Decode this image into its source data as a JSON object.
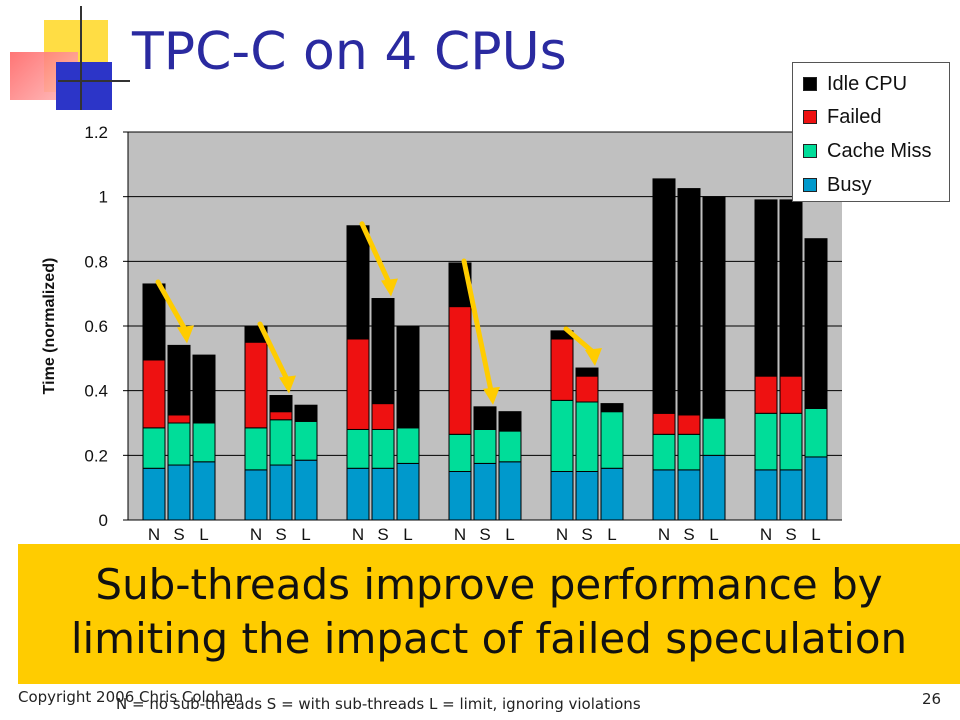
{
  "slide": {
    "title": "TPC-C on 4 CPUs",
    "banner": "Sub-threads improve performance by limiting the impact of failed speculation",
    "footer_left": "Copyright 2006 Chris Colohan",
    "footer_note": "N = no sub-threads     S = with sub-threads     L = limit, ignoring violations",
    "page_number": "26"
  },
  "colors": {
    "busy": "#0099cc",
    "cache_miss": "#00dd99",
    "failed": "#ee1111",
    "idle": "#000000",
    "plot_bg": "#c0c0c0",
    "arrow": "#ffcc00",
    "title": "#2a2aa0",
    "banner": "#ffcc00"
  },
  "chart_data": {
    "type": "bar",
    "stacked": true,
    "ylabel": "Time (normalized)",
    "ylim": [
      0,
      1.2
    ],
    "yticks": [
      "0",
      "0.2",
      "0.4",
      "0.6",
      "0.8",
      "1",
      "1.2"
    ],
    "grid": true,
    "legend_position": "top-right",
    "group_labels": [
      "N",
      "S",
      "L"
    ],
    "stack_order": [
      "Busy",
      "Cache Miss",
      "Failed",
      "Idle CPU"
    ],
    "legend": [
      "Idle CPU",
      "Failed",
      "Cache Miss",
      "Busy"
    ],
    "groups": [
      {
        "bars": [
          {
            "label": "N",
            "busy": 0.16,
            "cache_miss": 0.125,
            "failed": 0.21,
            "idle": 0.235
          },
          {
            "label": "S",
            "busy": 0.17,
            "cache_miss": 0.13,
            "failed": 0.025,
            "idle": 0.215
          },
          {
            "label": "L",
            "busy": 0.18,
            "cache_miss": 0.12,
            "failed": 0.0,
            "idle": 0.21
          }
        ],
        "arrow": true
      },
      {
        "bars": [
          {
            "label": "N",
            "busy": 0.155,
            "cache_miss": 0.13,
            "failed": 0.265,
            "idle": 0.05
          },
          {
            "label": "S",
            "busy": 0.17,
            "cache_miss": 0.14,
            "failed": 0.025,
            "idle": 0.05
          },
          {
            "label": "L",
            "busy": 0.185,
            "cache_miss": 0.12,
            "failed": 0.0,
            "idle": 0.05
          }
        ],
        "arrow": true
      },
      {
        "bars": [
          {
            "label": "N",
            "busy": 0.16,
            "cache_miss": 0.12,
            "failed": 0.28,
            "idle": 0.35
          },
          {
            "label": "S",
            "busy": 0.16,
            "cache_miss": 0.12,
            "failed": 0.08,
            "idle": 0.325
          },
          {
            "label": "L",
            "busy": 0.175,
            "cache_miss": 0.11,
            "failed": 0.0,
            "idle": 0.315
          }
        ],
        "arrow": true
      },
      {
        "bars": [
          {
            "label": "N",
            "busy": 0.15,
            "cache_miss": 0.115,
            "failed": 0.395,
            "idle": 0.135
          },
          {
            "label": "S",
            "busy": 0.175,
            "cache_miss": 0.105,
            "failed": 0.0,
            "idle": 0.07
          },
          {
            "label": "L",
            "busy": 0.18,
            "cache_miss": 0.095,
            "failed": 0.0,
            "idle": 0.06
          }
        ],
        "arrow": true
      },
      {
        "bars": [
          {
            "label": "N",
            "busy": 0.15,
            "cache_miss": 0.22,
            "failed": 0.19,
            "idle": 0.025
          },
          {
            "label": "S",
            "busy": 0.15,
            "cache_miss": 0.215,
            "failed": 0.08,
            "idle": 0.025
          },
          {
            "label": "L",
            "busy": 0.16,
            "cache_miss": 0.175,
            "failed": 0.0,
            "idle": 0.025
          }
        ],
        "arrow": true
      },
      {
        "bars": [
          {
            "label": "N",
            "busy": 0.155,
            "cache_miss": 0.11,
            "failed": 0.065,
            "idle": 0.725
          },
          {
            "label": "S",
            "busy": 0.155,
            "cache_miss": 0.11,
            "failed": 0.06,
            "idle": 0.7
          },
          {
            "label": "L",
            "busy": 0.2,
            "cache_miss": 0.115,
            "failed": 0.0,
            "idle": 0.685
          }
        ],
        "arrow": false
      },
      {
        "bars": [
          {
            "label": "N",
            "busy": 0.155,
            "cache_miss": 0.175,
            "failed": 0.115,
            "idle": 0.545
          },
          {
            "label": "S",
            "busy": 0.155,
            "cache_miss": 0.175,
            "failed": 0.115,
            "idle": 0.545
          },
          {
            "label": "L",
            "busy": 0.195,
            "cache_miss": 0.15,
            "failed": 0.0,
            "idle": 0.525
          }
        ],
        "arrow": false
      }
    ]
  }
}
